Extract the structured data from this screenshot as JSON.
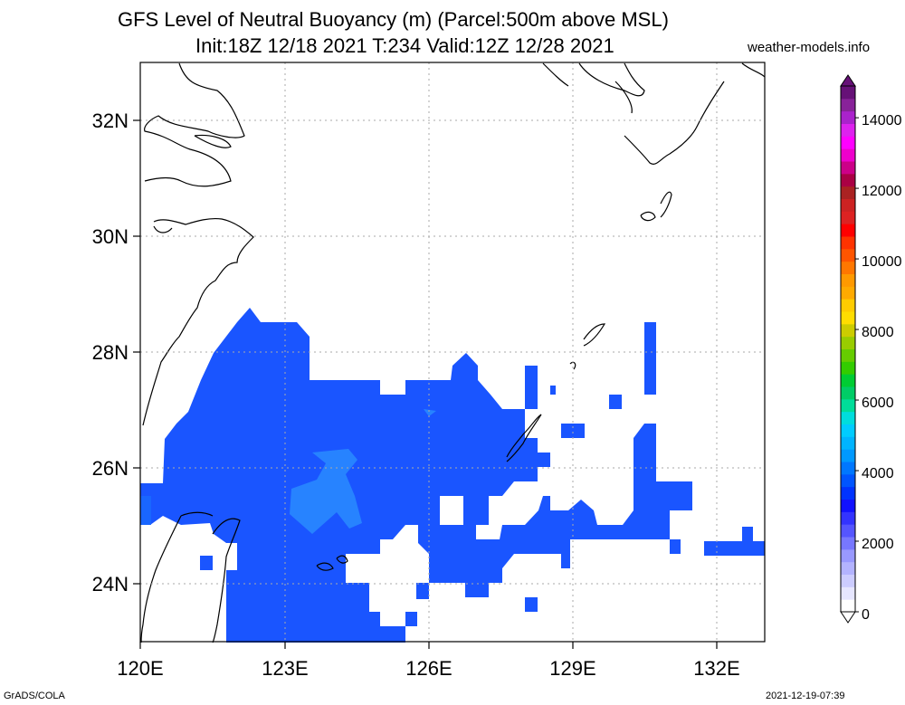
{
  "title_line1": "GFS Level of Neutral Buoyancy (m) (Parcel:500m above MSL)",
  "title_line2": "Init:18Z 12/18 2021 T:234 Valid:12Z 12/28 2021",
  "credit": "weather-models.info",
  "footer_left": "GrADS/COLA",
  "footer_right": "2021-12-19-07:39",
  "lat_labels": [
    "32N",
    "30N",
    "28N",
    "26N",
    "24N"
  ],
  "lon_labels": [
    "120E",
    "123E",
    "126E",
    "129E",
    "132E"
  ],
  "colorbar": {
    "labels": [
      "0",
      "2000",
      "4000",
      "6000",
      "8000",
      "10000",
      "12000",
      "14000"
    ],
    "colors": [
      "#ffffff",
      "#e6e6ff",
      "#ccccff",
      "#b3b3ff",
      "#9999ff",
      "#7777ff",
      "#5555ff",
      "#3333ff",
      "#1111ff",
      "#0033ff",
      "#0055ff",
      "#0077ff",
      "#0099ff",
      "#00b4ff",
      "#00ccff",
      "#00dddd",
      "#00dd99",
      "#00cc66",
      "#00cc33",
      "#33cc00",
      "#66cc00",
      "#99cc00",
      "#cccc00",
      "#ffdd00",
      "#ffcc00",
      "#ffaa00",
      "#ff9900",
      "#ff7700",
      "#ff5500",
      "#ff3300",
      "#ff0000",
      "#dd2222",
      "#cc2222",
      "#aa2222",
      "#aa0044",
      "#cc0088",
      "#ee00cc",
      "#ff00ff",
      "#dd22ee",
      "#aa22cc",
      "#882299",
      "#661177"
    ]
  },
  "field_color": "#1a55ff",
  "field_color_light": "#2a8cff"
}
